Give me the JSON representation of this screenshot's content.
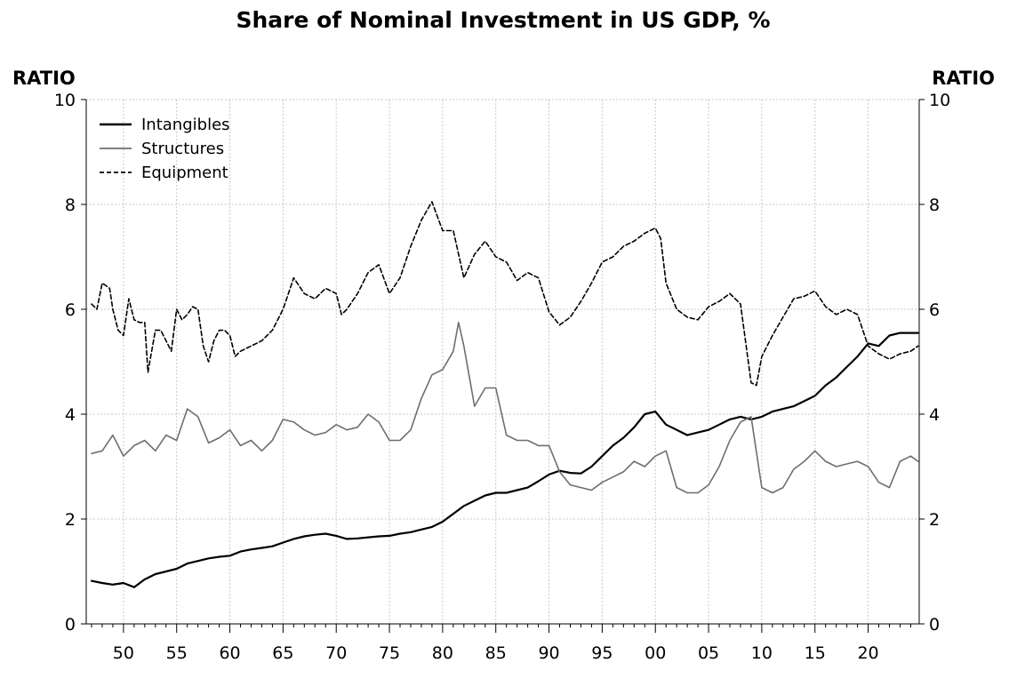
{
  "chart_data": {
    "type": "line",
    "title": "Share of Nominal Investment in US GDP, %",
    "ylabel_left": "RATIO",
    "ylabel_right": "RATIO",
    "xlabel": "",
    "xlim": [
      1946.5,
      2024.8
    ],
    "ylim": [
      0,
      10
    ],
    "x_tick_values": [
      1950,
      1955,
      1960,
      1965,
      1970,
      1975,
      1980,
      1985,
      1990,
      1995,
      2000,
      2005,
      2010,
      2015,
      2020
    ],
    "x_tick_labels": [
      "50",
      "55",
      "60",
      "65",
      "70",
      "75",
      "80",
      "85",
      "90",
      "95",
      "00",
      "05",
      "10",
      "15",
      "20"
    ],
    "y_ticks": [
      0,
      2,
      4,
      6,
      8,
      10
    ],
    "y_tick_labels": [
      "0",
      "2",
      "4",
      "6",
      "8",
      "10"
    ],
    "grid": true,
    "legend_position": "top-left",
    "series": [
      {
        "name": "Intangibles",
        "color": "#000000",
        "dash": "solid",
        "x": [
          1947,
          1948,
          1949,
          1950,
          1951,
          1952,
          1953,
          1954,
          1955,
          1956,
          1957,
          1958,
          1959,
          1960,
          1961,
          1962,
          1963,
          1964,
          1965,
          1966,
          1967,
          1968,
          1969,
          1970,
          1971,
          1972,
          1973,
          1974,
          1975,
          1976,
          1977,
          1978,
          1979,
          1980,
          1981,
          1982,
          1983,
          1984,
          1985,
          1986,
          1987,
          1988,
          1989,
          1990,
          1991,
          1992,
          1993,
          1994,
          1995,
          1996,
          1997,
          1998,
          1999,
          2000,
          2001,
          2002,
          2003,
          2004,
          2005,
          2006,
          2007,
          2008,
          2009,
          2010,
          2011,
          2012,
          2013,
          2014,
          2015,
          2016,
          2017,
          2018,
          2019,
          2020,
          2021,
          2022,
          2023,
          2024,
          2024.7
        ],
        "values": [
          0.82,
          0.78,
          0.75,
          0.78,
          0.7,
          0.85,
          0.95,
          1.0,
          1.05,
          1.15,
          1.2,
          1.25,
          1.28,
          1.3,
          1.38,
          1.42,
          1.45,
          1.48,
          1.55,
          1.62,
          1.67,
          1.7,
          1.72,
          1.68,
          1.62,
          1.63,
          1.65,
          1.67,
          1.68,
          1.72,
          1.75,
          1.8,
          1.85,
          1.95,
          2.1,
          2.25,
          2.35,
          2.45,
          2.5,
          2.5,
          2.55,
          2.6,
          2.72,
          2.85,
          2.92,
          2.88,
          2.87,
          3.0,
          3.2,
          3.4,
          3.55,
          3.75,
          4.0,
          4.05,
          3.8,
          3.7,
          3.6,
          3.65,
          3.7,
          3.8,
          3.9,
          3.95,
          3.9,
          3.95,
          4.05,
          4.1,
          4.15,
          4.25,
          4.35,
          4.55,
          4.7,
          4.9,
          5.1,
          5.35,
          5.3,
          5.5,
          5.55,
          5.55,
          5.55
        ]
      },
      {
        "name": "Structures",
        "color": "#6e6e6e",
        "dash": "solid",
        "x": [
          1947,
          1948,
          1949,
          1950,
          1951,
          1952,
          1953,
          1954,
          1955,
          1956,
          1957,
          1958,
          1959,
          1960,
          1961,
          1962,
          1963,
          1964,
          1965,
          1966,
          1967,
          1968,
          1969,
          1970,
          1971,
          1972,
          1973,
          1974,
          1975,
          1976,
          1977,
          1978,
          1979,
          1980,
          1981,
          1981.5,
          1982,
          1983,
          1984,
          1985,
          1986,
          1987,
          1988,
          1989,
          1990,
          1991,
          1992,
          1993,
          1994,
          1995,
          1996,
          1997,
          1998,
          1999,
          2000,
          2001,
          2002,
          2003,
          2004,
          2005,
          2006,
          2007,
          2008,
          2009,
          2010,
          2011,
          2012,
          2013,
          2014,
          2015,
          2016,
          2017,
          2018,
          2019,
          2020,
          2021,
          2022,
          2023,
          2024,
          2024.7
        ],
        "values": [
          3.25,
          3.3,
          3.6,
          3.2,
          3.4,
          3.5,
          3.3,
          3.6,
          3.5,
          4.1,
          3.95,
          3.45,
          3.55,
          3.7,
          3.4,
          3.5,
          3.3,
          3.5,
          3.9,
          3.85,
          3.7,
          3.6,
          3.65,
          3.8,
          3.7,
          3.75,
          4.0,
          3.85,
          3.5,
          3.5,
          3.7,
          4.3,
          4.75,
          4.85,
          5.2,
          5.75,
          5.3,
          4.15,
          4.5,
          4.5,
          3.6,
          3.5,
          3.5,
          3.4,
          3.4,
          2.9,
          2.65,
          2.6,
          2.55,
          2.7,
          2.8,
          2.9,
          3.1,
          3.0,
          3.2,
          3.3,
          2.6,
          2.5,
          2.5,
          2.65,
          3.0,
          3.5,
          3.85,
          3.95,
          2.6,
          2.5,
          2.6,
          2.95,
          3.1,
          3.3,
          3.1,
          3.0,
          3.05,
          3.1,
          3.0,
          2.7,
          2.6,
          3.1,
          3.2,
          3.1
        ]
      },
      {
        "name": "Equipment",
        "color": "#000000",
        "dash": "dashed",
        "x": [
          1947,
          1947.5,
          1948,
          1948.7,
          1949,
          1949.5,
          1950,
          1950.5,
          1951,
          1951.5,
          1952,
          1952.3,
          1953,
          1953.5,
          1954,
          1954.5,
          1955,
          1955.5,
          1956,
          1956.5,
          1957,
          1957.5,
          1958,
          1958.5,
          1959,
          1959.5,
          1960,
          1960.5,
          1961,
          1962,
          1963,
          1964,
          1965,
          1966,
          1967,
          1968,
          1969,
          1970,
          1970.5,
          1971,
          1972,
          1973,
          1974,
          1975,
          1976,
          1977,
          1978,
          1979,
          1980,
          1980.5,
          1981,
          1982,
          1983,
          1984,
          1985,
          1986,
          1987,
          1988,
          1989,
          1990,
          1991,
          1992,
          1993,
          1994,
          1995,
          1996,
          1997,
          1998,
          1999,
          2000,
          2000.5,
          2001,
          2002,
          2003,
          2004,
          2005,
          2006,
          2007,
          2008,
          2009,
          2009.5,
          2010,
          2011,
          2012,
          2013,
          2014,
          2015,
          2016,
          2017,
          2018,
          2019,
          2020,
          2021,
          2022,
          2023,
          2024,
          2024.7
        ],
        "values": [
          6.1,
          6.0,
          6.5,
          6.4,
          6.0,
          5.6,
          5.5,
          6.2,
          5.8,
          5.75,
          5.75,
          4.8,
          5.6,
          5.6,
          5.4,
          5.2,
          6.0,
          5.8,
          5.9,
          6.05,
          6.0,
          5.3,
          5.0,
          5.4,
          5.6,
          5.6,
          5.5,
          5.1,
          5.2,
          5.3,
          5.4,
          5.6,
          6.0,
          6.6,
          6.3,
          6.2,
          6.4,
          6.3,
          5.9,
          6.0,
          6.3,
          6.7,
          6.85,
          6.3,
          6.6,
          7.2,
          7.7,
          8.05,
          7.5,
          7.5,
          7.5,
          6.6,
          7.05,
          7.3,
          7.0,
          6.9,
          6.55,
          6.7,
          6.6,
          5.95,
          5.7,
          5.85,
          6.15,
          6.5,
          6.9,
          7.0,
          7.2,
          7.3,
          7.45,
          7.55,
          7.35,
          6.5,
          6.0,
          5.85,
          5.8,
          6.05,
          6.15,
          6.3,
          6.1,
          4.6,
          4.55,
          5.1,
          5.5,
          5.85,
          6.2,
          6.25,
          6.35,
          6.05,
          5.9,
          6.0,
          5.9,
          5.3,
          5.15,
          5.05,
          5.15,
          5.2,
          5.3
        ]
      }
    ]
  }
}
